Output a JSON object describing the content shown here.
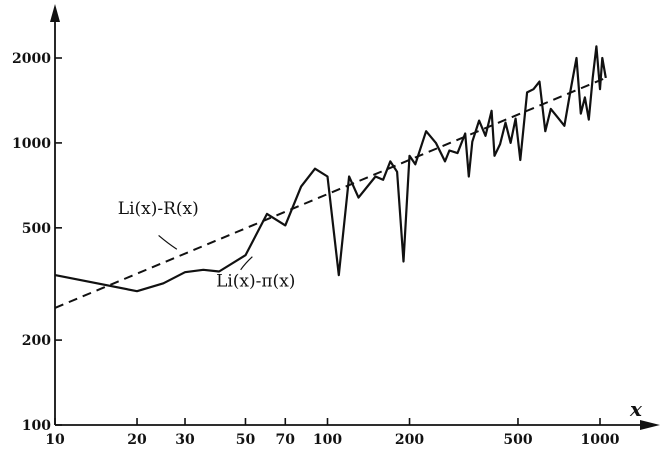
{
  "chart_data": {
    "type": "line",
    "title": "",
    "xlabel": "x",
    "ylabel": "",
    "x_scale": "log",
    "y_scale": "log",
    "xlim": [
      10,
      1200
    ],
    "ylim": [
      100,
      2600
    ],
    "grid": false,
    "x_ticks": [
      {
        "value": 10,
        "label": "10"
      },
      {
        "value": 20,
        "label": "20"
      },
      {
        "value": 30,
        "label": "30"
      },
      {
        "value": 50,
        "label": "50"
      },
      {
        "value": 70,
        "label": "70"
      },
      {
        "value": 100,
        "label": "100"
      },
      {
        "value": 200,
        "label": "200"
      },
      {
        "value": 500,
        "label": "500"
      },
      {
        "value": 1000,
        "label": "1000"
      }
    ],
    "y_ticks": [
      {
        "value": 100,
        "label": "100"
      },
      {
        "value": 200,
        "label": "200"
      },
      {
        "value": 500,
        "label": "500"
      },
      {
        "value": 1000,
        "label": "1000"
      },
      {
        "value": 2000,
        "label": "2000"
      }
    ],
    "annotations": [
      {
        "text": "Li(x)-R(x)",
        "series": 1
      },
      {
        "text": "Li(x)-π(x)",
        "series": 0
      }
    ],
    "series": [
      {
        "style": "solid",
        "points": [
          [
            10,
            340
          ],
          [
            20,
            298
          ],
          [
            25,
            318
          ],
          [
            30,
            348
          ],
          [
            35,
            355
          ],
          [
            40,
            350
          ],
          [
            50,
            400
          ],
          [
            60,
            560
          ],
          [
            70,
            510
          ],
          [
            80,
            700
          ],
          [
            90,
            810
          ],
          [
            100,
            760
          ],
          [
            110,
            340
          ],
          [
            120,
            760
          ],
          [
            130,
            640
          ],
          [
            150,
            760
          ],
          [
            160,
            740
          ],
          [
            170,
            860
          ],
          [
            180,
            790
          ],
          [
            190,
            380
          ],
          [
            200,
            900
          ],
          [
            210,
            840
          ],
          [
            230,
            1100
          ],
          [
            250,
            1000
          ],
          [
            270,
            860
          ],
          [
            280,
            940
          ],
          [
            300,
            920
          ],
          [
            320,
            1080
          ],
          [
            330,
            760
          ],
          [
            340,
            1010
          ],
          [
            360,
            1200
          ],
          [
            380,
            1060
          ],
          [
            400,
            1300
          ],
          [
            410,
            900
          ],
          [
            430,
            990
          ],
          [
            450,
            1180
          ],
          [
            470,
            1000
          ],
          [
            490,
            1220
          ],
          [
            510,
            870
          ],
          [
            540,
            1510
          ],
          [
            570,
            1550
          ],
          [
            600,
            1650
          ],
          [
            630,
            1100
          ],
          [
            660,
            1320
          ],
          [
            700,
            1230
          ],
          [
            740,
            1150
          ],
          [
            780,
            1540
          ],
          [
            820,
            2000
          ],
          [
            850,
            1270
          ],
          [
            880,
            1450
          ],
          [
            910,
            1210
          ],
          [
            940,
            1700
          ],
          [
            970,
            2200
          ],
          [
            1000,
            1550
          ],
          [
            1020,
            2000
          ],
          [
            1050,
            1700
          ]
        ]
      },
      {
        "style": "dashed",
        "points": [
          [
            10,
            260
          ],
          [
            1050,
            1700
          ]
        ]
      }
    ]
  }
}
